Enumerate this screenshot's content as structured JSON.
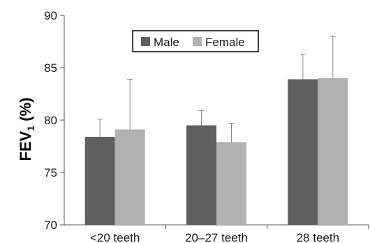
{
  "chart_data": {
    "type": "bar",
    "categories": [
      "<20 teeth",
      "20–27 teeth",
      "28 teeth"
    ],
    "series": [
      {
        "name": "Male",
        "values": [
          78.4,
          79.5,
          83.9
        ],
        "error_upper": [
          80.1,
          80.9,
          86.3
        ],
        "color": "#5f5f5f"
      },
      {
        "name": "Female",
        "values": [
          79.1,
          77.9,
          84.0
        ],
        "error_upper": [
          83.9,
          79.7,
          88.0
        ],
        "color": "#b1b1b1"
      }
    ],
    "ylabel": {
      "main": "FEV",
      "sub": "1",
      "suffix": " (%)"
    },
    "ylim": [
      70,
      90
    ],
    "yticks": [
      "70",
      "75",
      "80",
      "85",
      "90"
    ],
    "legend_position": "top-center",
    "grid": false
  }
}
